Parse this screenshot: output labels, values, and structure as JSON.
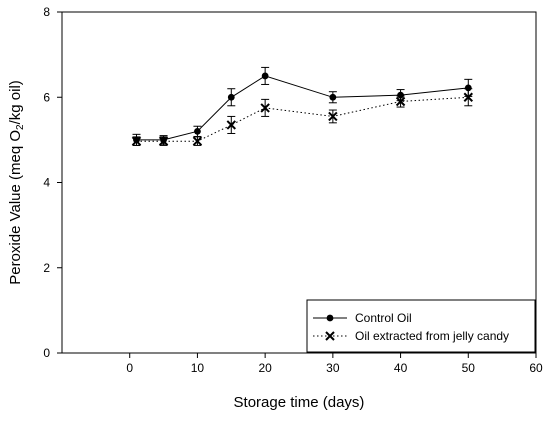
{
  "chart_data": {
    "type": "line",
    "xlabel": "Storage time (days)",
    "ylabel_main": "Peroxide Value (meq O",
    "ylabel_sub": "2",
    "ylabel_tail": "/kg oil)",
    "xlim": [
      -10,
      60
    ],
    "ylim": [
      0,
      8
    ],
    "xticks": [
      0,
      10,
      20,
      30,
      40,
      50,
      60
    ],
    "yticks": [
      0,
      2,
      4,
      6,
      8
    ],
    "grid": false,
    "legend_position": "bottom-right",
    "series": [
      {
        "name": "Control Oil",
        "marker": "filled-circle",
        "line_style": "solid",
        "x": [
          1,
          5,
          10,
          15,
          20,
          30,
          40,
          50
        ],
        "y": [
          5.0,
          5.0,
          5.2,
          6.0,
          6.5,
          6.0,
          6.05,
          6.22
        ],
        "err": [
          0.13,
          0.1,
          0.12,
          0.2,
          0.2,
          0.13,
          0.13,
          0.2
        ]
      },
      {
        "name": "Oil extracted from jelly candy",
        "marker": "x-cross",
        "line_style": "dotted",
        "x": [
          1,
          5,
          10,
          15,
          20,
          30,
          40,
          50
        ],
        "y": [
          4.97,
          4.97,
          4.97,
          5.35,
          5.75,
          5.55,
          5.9,
          6.0
        ],
        "err": [
          0.1,
          0.1,
          0.1,
          0.2,
          0.2,
          0.15,
          0.13,
          0.2
        ]
      }
    ]
  }
}
